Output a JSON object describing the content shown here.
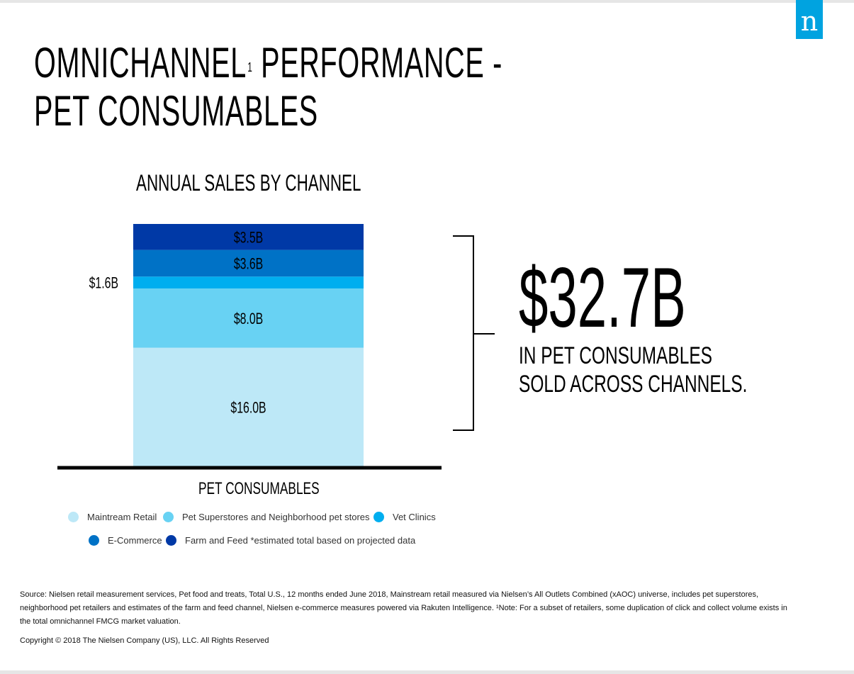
{
  "page": {
    "title_line1": "OMNICHANNEL",
    "title_sup": "1",
    "title_line1_rest": " PERFORMANCE -",
    "title_line2": "PET CONSUMABLES",
    "logo_letter": "n",
    "total_value": "$32.7B",
    "total_caption_line1": "IN PET CONSUMABLES",
    "total_caption_line2": "SOLD ACROSS CHANNELS.",
    "source_text": "Source: Nielsen retail measurement services, Pet food and treats, Total U.S., 12 months ended June 2018, Mainstream retail measured via Nielsen’s All Outlets Combined (xAOC) universe, includes pet superstores, neighborhood pet retailers and estimates of the farm and feed channel, Nielsen e-commerce measures powered via Rakuten Intelligence. ¹Note: For a subset of retailers, some duplication of click and collect volume exists in the total omnichannel FMCG market valuation.",
    "copyright": "Copyright © 2018 The Nielsen Company (US), LLC. All Rights Reserved"
  },
  "colors": {
    "brand": "#00a3e0",
    "mainstream": "#bde8f7",
    "superstores": "#68d2f3",
    "vet": "#00aeef",
    "ecommerce": "#0072c6",
    "farm": "#0039a6"
  },
  "chart_data": {
    "type": "bar",
    "stacked": true,
    "title": "ANNUAL SALES BY CHANNEL",
    "categories": [
      "PET CONSUMABLES"
    ],
    "series": [
      {
        "name": "Maintream Retail",
        "values": [
          16.0
        ],
        "label": "$16.0B",
        "color": "#bde8f7"
      },
      {
        "name": "Pet Superstores and Neighborhood pet stores",
        "values": [
          8.0
        ],
        "label": "$8.0B",
        "color": "#68d2f3"
      },
      {
        "name": "Vet Clinics",
        "values": [
          1.6
        ],
        "label": "$1.6B",
        "color": "#00aeef"
      },
      {
        "name": "E-Commerce",
        "values": [
          3.6
        ],
        "label": "$3.6B",
        "color": "#0072c6"
      },
      {
        "name": "Farm and Feed *estimated total based on projected data",
        "values": [
          3.5
        ],
        "label": "$3.5B",
        "color": "#0039a6"
      }
    ],
    "units": "billion USD",
    "legend_position": "bottom",
    "grid": false
  }
}
